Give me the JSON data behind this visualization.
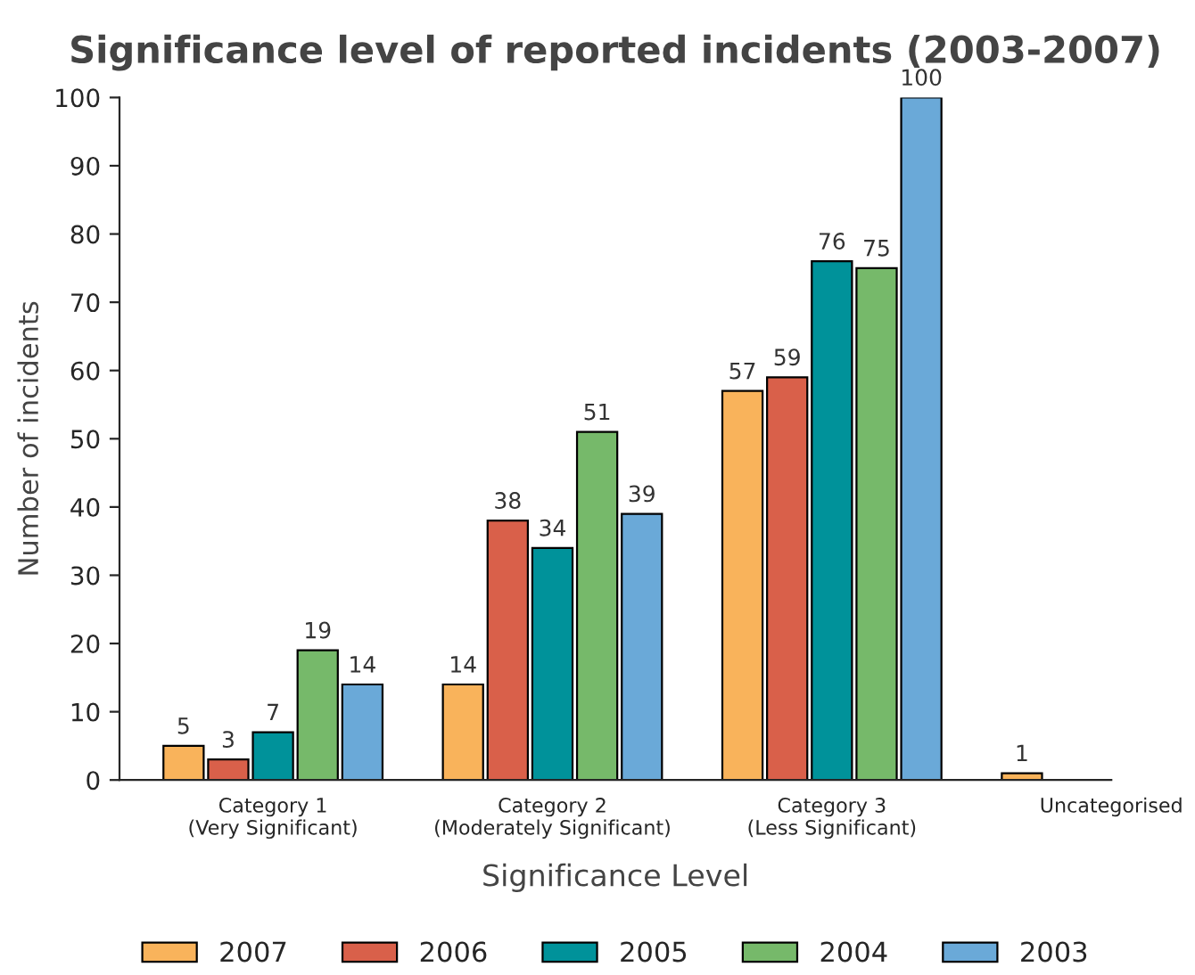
{
  "chart_data": {
    "type": "bar",
    "title": "Significance level of reported incidents (2003-2007)",
    "xlabel": "Significance Level",
    "ylabel": "Number of incidents",
    "categories": [
      "Category 1\n(Very Significant)",
      "Category 2\n(Moderately Significant)",
      "Category 3\n(Less Significant)",
      "Uncategorised"
    ],
    "series": [
      {
        "name": "2007",
        "color": "#f9b35b",
        "values": [
          5,
          14,
          57,
          1
        ]
      },
      {
        "name": "2006",
        "color": "#d9604a",
        "values": [
          3,
          38,
          59,
          null
        ]
      },
      {
        "name": "2005",
        "color": "#00929a",
        "values": [
          7,
          34,
          76,
          null
        ]
      },
      {
        "name": "2004",
        "color": "#76b96a",
        "values": [
          19,
          51,
          75,
          null
        ]
      },
      {
        "name": "2003",
        "color": "#6aa9d8",
        "values": [
          14,
          39,
          100,
          null
        ]
      }
    ],
    "ylim": [
      0,
      100
    ],
    "yticks": [
      0,
      10,
      20,
      30,
      40,
      50,
      60,
      70,
      80,
      90,
      100
    ],
    "grid": false,
    "legend": "bottom",
    "data_labels": true
  }
}
